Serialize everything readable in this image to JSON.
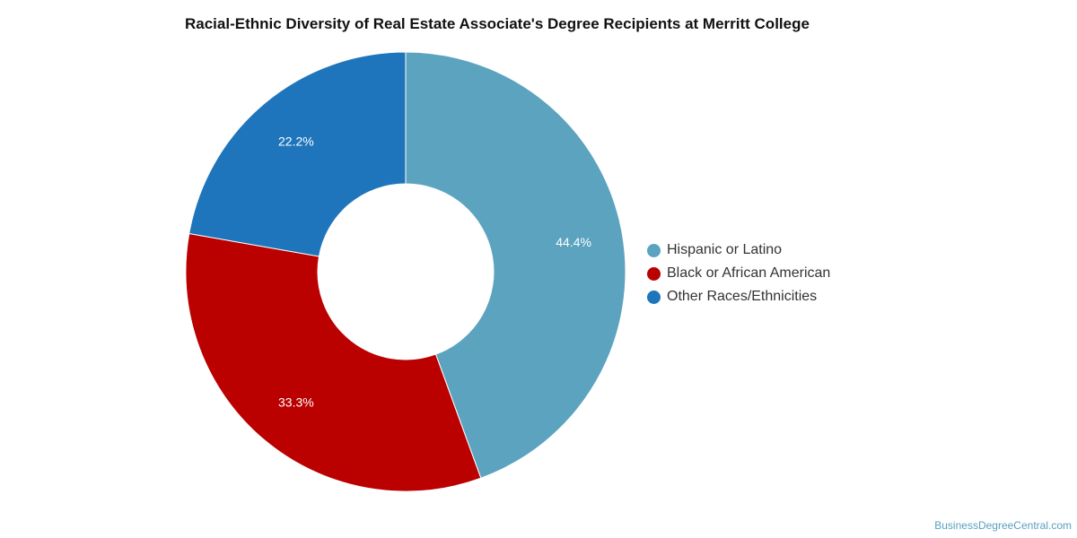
{
  "chart_data": {
    "type": "pie",
    "variant": "donut",
    "title": "Racial-Ethnic Diversity of Real Estate Associate's Degree Recipients at Merritt College",
    "categories": [
      "Hispanic or Latino",
      "Black or African American",
      "Other Races/Ethnicities"
    ],
    "values": [
      44.4,
      33.3,
      22.2
    ],
    "labels": [
      "44.4%",
      "33.3%",
      "22.2%"
    ],
    "colors": [
      "#5ca3c0",
      "#bb0000",
      "#1f75bb"
    ],
    "legend_position": "right"
  },
  "source": "BusinessDegreeCentral.com"
}
